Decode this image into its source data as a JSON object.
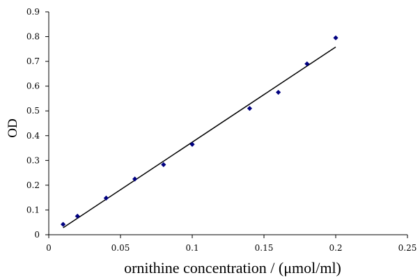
{
  "chart_data": {
    "type": "scatter",
    "title": "",
    "xlabel": "ornithine concentration / (μmol/ml)",
    "ylabel": "OD",
    "xlim": [
      0,
      0.25
    ],
    "ylim": [
      0,
      0.9
    ],
    "x_ticks": [
      "0",
      "0.05",
      "0.1",
      "0.15",
      "0.2",
      "0.25"
    ],
    "y_ticks": [
      "0",
      "0.1",
      "0.2",
      "0.3",
      "0.4",
      "0.5",
      "0.6",
      "0.7",
      "0.8",
      "0.9"
    ],
    "grid": false,
    "legend": "none",
    "marker_color": "#000080",
    "line_color": "#000000",
    "series": [
      {
        "points": [
          {
            "x": 0.01,
            "y": 0.042
          },
          {
            "x": 0.02,
            "y": 0.075
          },
          {
            "x": 0.04,
            "y": 0.148
          },
          {
            "x": 0.06,
            "y": 0.225
          },
          {
            "x": 0.08,
            "y": 0.283
          },
          {
            "x": 0.1,
            "y": 0.365
          },
          {
            "x": 0.14,
            "y": 0.51
          },
          {
            "x": 0.16,
            "y": 0.575
          },
          {
            "x": 0.18,
            "y": 0.69
          },
          {
            "x": 0.2,
            "y": 0.795
          }
        ]
      }
    ],
    "trendline": {
      "x": [
        0.01,
        0.2
      ],
      "y": [
        0.028,
        0.758
      ]
    }
  }
}
